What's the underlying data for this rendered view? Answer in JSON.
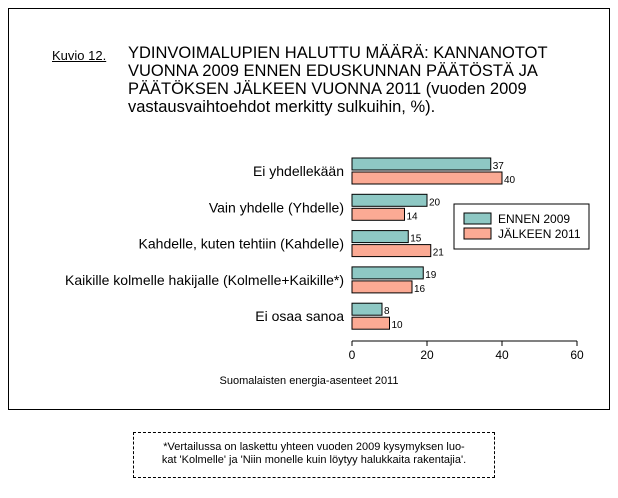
{
  "figure": {
    "label": "Kuvio 12.",
    "title": "YDINVOIMALUPIEN HALUTTU MÄÄRÄ: KANNANOTOT VUONNA 2009 ENNEN EDUSKUNNAN PÄÄTÖSTÄ JA PÄÄTÖKSEN JÄLKEEN VUONNA 2011 (vuoden 2009 vastausvaihtoehdot merkitty sulkuihin, %).",
    "source": "Suomalaisten energia-asenteet 2011"
  },
  "footnote": {
    "line1": "*Vertailussa on laskettu yhteen vuoden 2009 kysymyksen luo-",
    "line2": "kat 'Kolmelle' ja 'Niin monelle kuin löytyy halukkaita rakentajia'."
  },
  "chart_data": {
    "type": "bar",
    "orientation": "horizontal",
    "title": "",
    "categories": [
      "Ei yhdellekään",
      "Vain yhdelle (Yhdelle)",
      "Kahdelle, kuten tehtiin (Kahdelle)",
      "Kaikille kolmelle hakijalle (Kolmelle+Kaikille*)",
      "Ei osaa sanoa"
    ],
    "series": [
      {
        "name": "ENNEN 2009",
        "color": "#8ec8c4",
        "values": [
          37,
          20,
          15,
          19,
          8
        ]
      },
      {
        "name": "JÄLKEEN 2011",
        "color": "#fbaa94",
        "values": [
          40,
          14,
          21,
          16,
          10
        ]
      }
    ],
    "xlim": [
      0,
      60
    ],
    "xticks": [
      "0",
      "20",
      "40",
      "60"
    ],
    "xlabel": "",
    "ylabel": "",
    "legend": "right",
    "grid": false
  }
}
